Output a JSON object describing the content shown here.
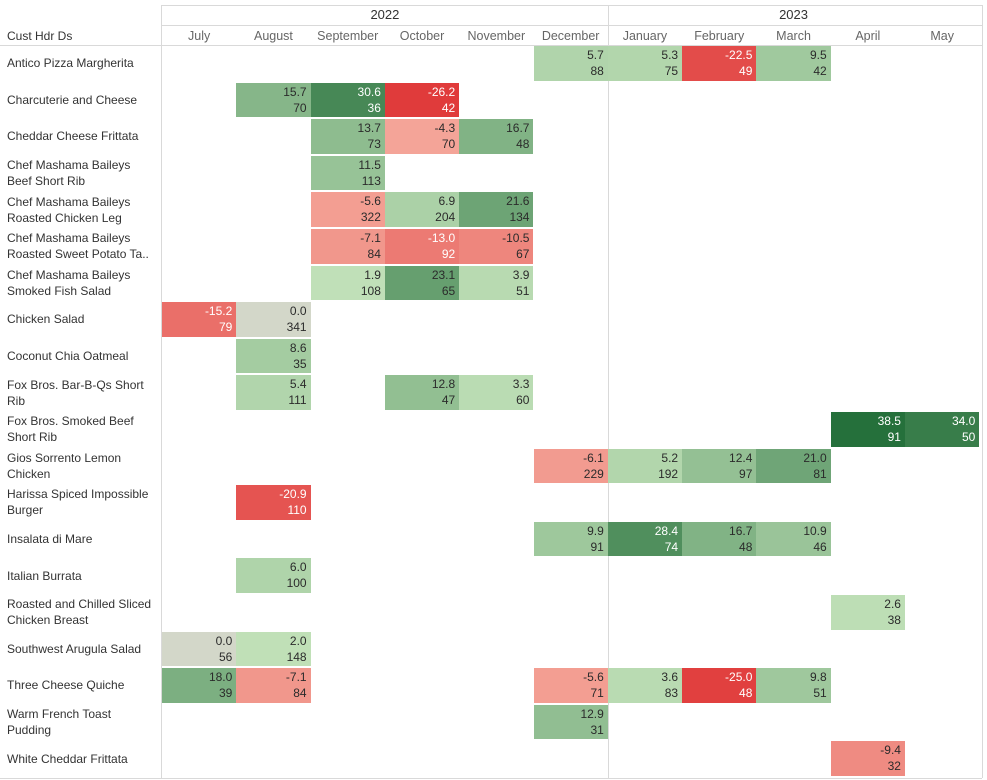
{
  "chart_data": {
    "type": "heatmap",
    "row_header": "Cust Hdr Ds",
    "years": [
      {
        "label": "2022",
        "months": [
          "July",
          "August",
          "September",
          "October",
          "November",
          "December"
        ]
      },
      {
        "label": "2023",
        "months": [
          "January",
          "February",
          "March",
          "April",
          "May"
        ]
      }
    ],
    "columns": [
      "July",
      "August",
      "September",
      "October",
      "November",
      "December",
      "January",
      "February",
      "March",
      "April",
      "May"
    ],
    "rows": [
      {
        "label": [
          "Antico Pizza Margherita"
        ],
        "cells": {
          "December": [
            5.7,
            88
          ],
          "January": [
            5.3,
            75
          ],
          "February": [
            -22.5,
            49
          ],
          "March": [
            9.5,
            42
          ]
        }
      },
      {
        "label": [
          "Charcuterie and Cheese"
        ],
        "cells": {
          "August": [
            15.7,
            70
          ],
          "September": [
            30.6,
            36
          ],
          "October": [
            -26.2,
            42
          ]
        }
      },
      {
        "label": [
          "Cheddar Cheese Frittata"
        ],
        "cells": {
          "September": [
            13.7,
            73
          ],
          "October": [
            -4.3,
            70
          ],
          "November": [
            16.7,
            48
          ]
        }
      },
      {
        "label": [
          "Chef Mashama Baileys",
          "Beef Short Rib"
        ],
        "cells": {
          "September": [
            11.5,
            113
          ]
        }
      },
      {
        "label": [
          "Chef Mashama Baileys",
          "Roasted Chicken Leg"
        ],
        "cells": {
          "September": [
            -5.6,
            322
          ],
          "October": [
            6.9,
            204
          ],
          "November": [
            21.6,
            134
          ]
        }
      },
      {
        "label": [
          "Chef Mashama Baileys",
          "Roasted Sweet Potato Ta.."
        ],
        "cells": {
          "September": [
            -7.1,
            84
          ],
          "October": [
            -13.0,
            92
          ],
          "November": [
            -10.5,
            67
          ]
        }
      },
      {
        "label": [
          "Chef Mashama Baileys",
          "Smoked Fish Salad"
        ],
        "cells": {
          "September": [
            1.9,
            108
          ],
          "October": [
            23.1,
            65
          ],
          "November": [
            3.9,
            51
          ]
        }
      },
      {
        "label": [
          "Chicken Salad"
        ],
        "cells": {
          "July": [
            -15.2,
            79
          ],
          "August": [
            0.0,
            341
          ]
        }
      },
      {
        "label": [
          "Coconut Chia Oatmeal"
        ],
        "cells": {
          "August": [
            8.6,
            35
          ]
        }
      },
      {
        "label": [
          "Fox Bros. Bar-B-Qs Short",
          "Rib"
        ],
        "cells": {
          "August": [
            5.4,
            111
          ],
          "October": [
            12.8,
            47
          ],
          "November": [
            3.3,
            60
          ]
        }
      },
      {
        "label": [
          "Fox Bros. Smoked Beef",
          "Short Rib"
        ],
        "cells": {
          "April": [
            38.5,
            91
          ],
          "May": [
            34.0,
            50
          ]
        }
      },
      {
        "label": [
          "Gios Sorrento Lemon",
          "Chicken"
        ],
        "cells": {
          "December": [
            -6.1,
            229
          ],
          "January": [
            5.2,
            192
          ],
          "February": [
            12.4,
            97
          ],
          "March": [
            21.0,
            81
          ]
        }
      },
      {
        "label": [
          "Harissa Spiced Impossible",
          "Burger"
        ],
        "cells": {
          "August": [
            -20.9,
            110
          ]
        }
      },
      {
        "label": [
          "Insalata di Mare"
        ],
        "cells": {
          "December": [
            9.9,
            91
          ],
          "January": [
            28.4,
            74
          ],
          "February": [
            16.7,
            48
          ],
          "March": [
            10.9,
            46
          ]
        }
      },
      {
        "label": [
          "Italian Burrata"
        ],
        "cells": {
          "August": [
            6.0,
            100
          ]
        }
      },
      {
        "label": [
          "Roasted and Chilled Sliced",
          "Chicken Breast"
        ],
        "cells": {
          "April": [
            2.6,
            38
          ]
        }
      },
      {
        "label": [
          "Southwest Arugula Salad"
        ],
        "cells": {
          "July": [
            0.0,
            56
          ],
          "August": [
            2.0,
            148
          ]
        }
      },
      {
        "label": [
          "Three Cheese Quiche"
        ],
        "cells": {
          "July": [
            18.0,
            39
          ],
          "August": [
            -7.1,
            84
          ],
          "December": [
            -5.6,
            71
          ],
          "January": [
            3.6,
            83
          ],
          "February": [
            -25.0,
            48
          ],
          "March": [
            9.8,
            51
          ]
        }
      },
      {
        "label": [
          "Warm French Toast",
          "Pudding"
        ],
        "cells": {
          "December": [
            12.9,
            31
          ]
        }
      },
      {
        "label": [
          "White Cheddar Frittata"
        ],
        "cells": {
          "April": [
            -9.4,
            32
          ]
        }
      }
    ],
    "color_scale": {
      "negative": "#e03b3b",
      "neutral": "#d3d7c9",
      "positive": "#1f6b36"
    }
  }
}
